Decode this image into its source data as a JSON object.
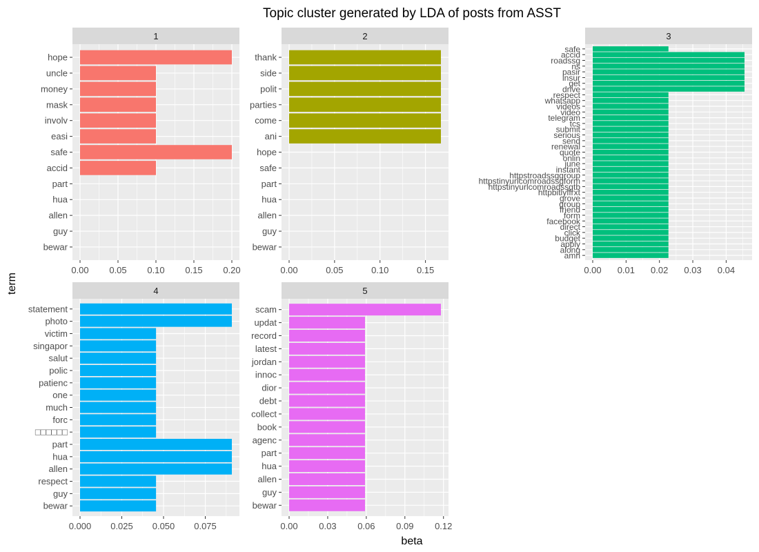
{
  "chart_data": {
    "type": "bar",
    "title": "Topic cluster generated by LDA of posts from ASST",
    "xlabel": "beta",
    "ylabel": "term",
    "colors": {
      "topic_1": "#F8766D",
      "topic_2": "#A3A500",
      "topic_3": "#00BF7D",
      "topic_4": "#00B0F6",
      "topic_5": "#E76BF3",
      "panel_bg": "#EBEBEB",
      "strip_bg": "#D9D9D9"
    },
    "panels": [
      {
        "topic": "1",
        "xlim": [
          0,
          0.2
        ],
        "xticks": [
          0,
          0.05,
          0.1,
          0.15,
          0.2
        ],
        "xtick_labels": [
          "0.00",
          "0.05",
          "0.10",
          "0.15",
          "0.20"
        ],
        "terms": [
          "hope",
          "uncle",
          "money",
          "mask",
          "involv",
          "easi",
          "safe",
          "accid",
          "part",
          "hua",
          "allen",
          "guy",
          "bewar"
        ],
        "values": [
          0.2,
          0.1,
          0.1,
          0.1,
          0.1,
          0.1,
          0.2,
          0.1,
          0,
          0,
          0,
          0,
          0
        ]
      },
      {
        "topic": "2",
        "xlim": [
          0,
          0.167
        ],
        "xticks": [
          0,
          0.05,
          0.1,
          0.15
        ],
        "xtick_labels": [
          "0.00",
          "0.05",
          "0.10",
          "0.15"
        ],
        "terms": [
          "thank",
          "side",
          "polit",
          "parties",
          "come",
          "ani",
          "hope",
          "safe",
          "part",
          "hua",
          "allen",
          "guy",
          "bewar"
        ],
        "values": [
          0.167,
          0.167,
          0.167,
          0.167,
          0.167,
          0.167,
          0,
          0,
          0,
          0,
          0,
          0,
          0
        ]
      },
      {
        "topic": "3",
        "xlim": [
          0,
          0.0455
        ],
        "xticks": [
          0,
          0.01,
          0.02,
          0.03,
          0.04
        ],
        "xtick_labels": [
          "0.00",
          "0.01",
          "0.02",
          "0.03",
          "0.04"
        ],
        "terms": [
          "safe",
          "accid",
          "roadssg",
          "ns",
          "pasir",
          "insur",
          "get",
          "drive",
          "respect",
          "whatsapp",
          "videos",
          "video",
          "telegram",
          "tcs",
          "submit",
          "serious",
          "send",
          "renewal",
          "quote",
          "onlin",
          "june",
          "instant",
          "httpstroadssggroup",
          "httpstinyurlcomroadssgform",
          "httpstinyurlcomroadssgtb",
          "httpbitlyffrxt",
          "grove",
          "group",
          "friend",
          "form",
          "facebook",
          "direct",
          "click",
          "budget",
          "apply",
          "along",
          "amn"
        ],
        "values": [
          0.0227,
          0.0455,
          0.0455,
          0.0455,
          0.0455,
          0.0455,
          0.0455,
          0.0455,
          0.0227,
          0.0227,
          0.0227,
          0.0227,
          0.0227,
          0.0227,
          0.0227,
          0.0227,
          0.0227,
          0.0227,
          0.0227,
          0.0227,
          0.0227,
          0.0227,
          0.0227,
          0.0227,
          0.0227,
          0.0227,
          0.0227,
          0.0227,
          0.0227,
          0.0227,
          0.0227,
          0.0227,
          0.0227,
          0.0227,
          0.0227,
          0.0227,
          0.0227
        ]
      },
      {
        "topic": "4",
        "xlim": [
          0,
          0.0909
        ],
        "xticks": [
          0,
          0.025,
          0.05,
          0.075
        ],
        "xtick_labels": [
          "0.000",
          "0.025",
          "0.050",
          "0.075"
        ],
        "terms": [
          "statement",
          "photo",
          "victim",
          "singapor",
          "salut",
          "polic",
          "patienc",
          "one",
          "much",
          "forc",
          "□□□□□□",
          "part",
          "hua",
          "allen",
          "respect",
          "guy",
          "bewar"
        ],
        "values": [
          0.0909,
          0.0909,
          0.0455,
          0.0455,
          0.0455,
          0.0455,
          0.0455,
          0.0455,
          0.0455,
          0.0455,
          0.0455,
          0.0909,
          0.0909,
          0.0909,
          0.0455,
          0.0455,
          0.0455
        ]
      },
      {
        "topic": "5",
        "xlim": [
          0,
          0.118
        ],
        "xticks": [
          0,
          0.03,
          0.06,
          0.09,
          0.12
        ],
        "xtick_labels": [
          "0.00",
          "0.03",
          "0.06",
          "0.09",
          "0.12"
        ],
        "terms": [
          "scam",
          "updat",
          "record",
          "latest",
          "jordan",
          "innoc",
          "dior",
          "debt",
          "collect",
          "book",
          "agenc",
          "part",
          "hua",
          "allen",
          "guy",
          "bewar"
        ],
        "values": [
          0.118,
          0.059,
          0.059,
          0.059,
          0.059,
          0.059,
          0.059,
          0.059,
          0.059,
          0.059,
          0.059,
          0.059,
          0.059,
          0.059,
          0.059,
          0.059
        ]
      }
    ]
  }
}
